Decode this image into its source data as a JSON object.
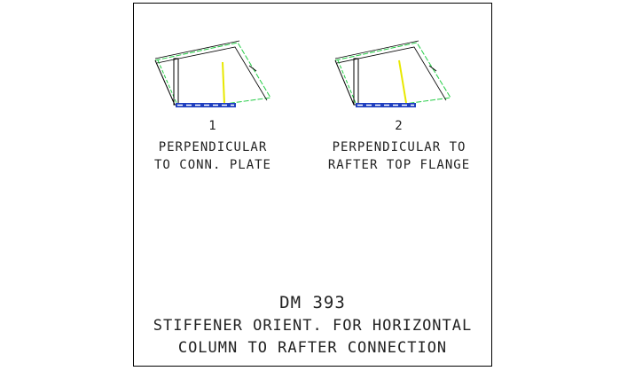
{
  "options": [
    {
      "number": "1",
      "line1": "PERPENDICULAR",
      "line2": "TO CONN. PLATE"
    },
    {
      "number": "2",
      "line1": "PERPENDICULAR TO",
      "line2": "RAFTER TOP FLANGE"
    }
  ],
  "title": {
    "code": "DM 393",
    "line1": "STIFFENER ORIENT. FOR HORIZONTAL",
    "line2": "COLUMN TO RAFTER CONNECTION"
  },
  "colors": {
    "rafter": "#22cc44",
    "stiffener": "#e8e800",
    "plate": "#2040c0",
    "line": "#000000"
  }
}
